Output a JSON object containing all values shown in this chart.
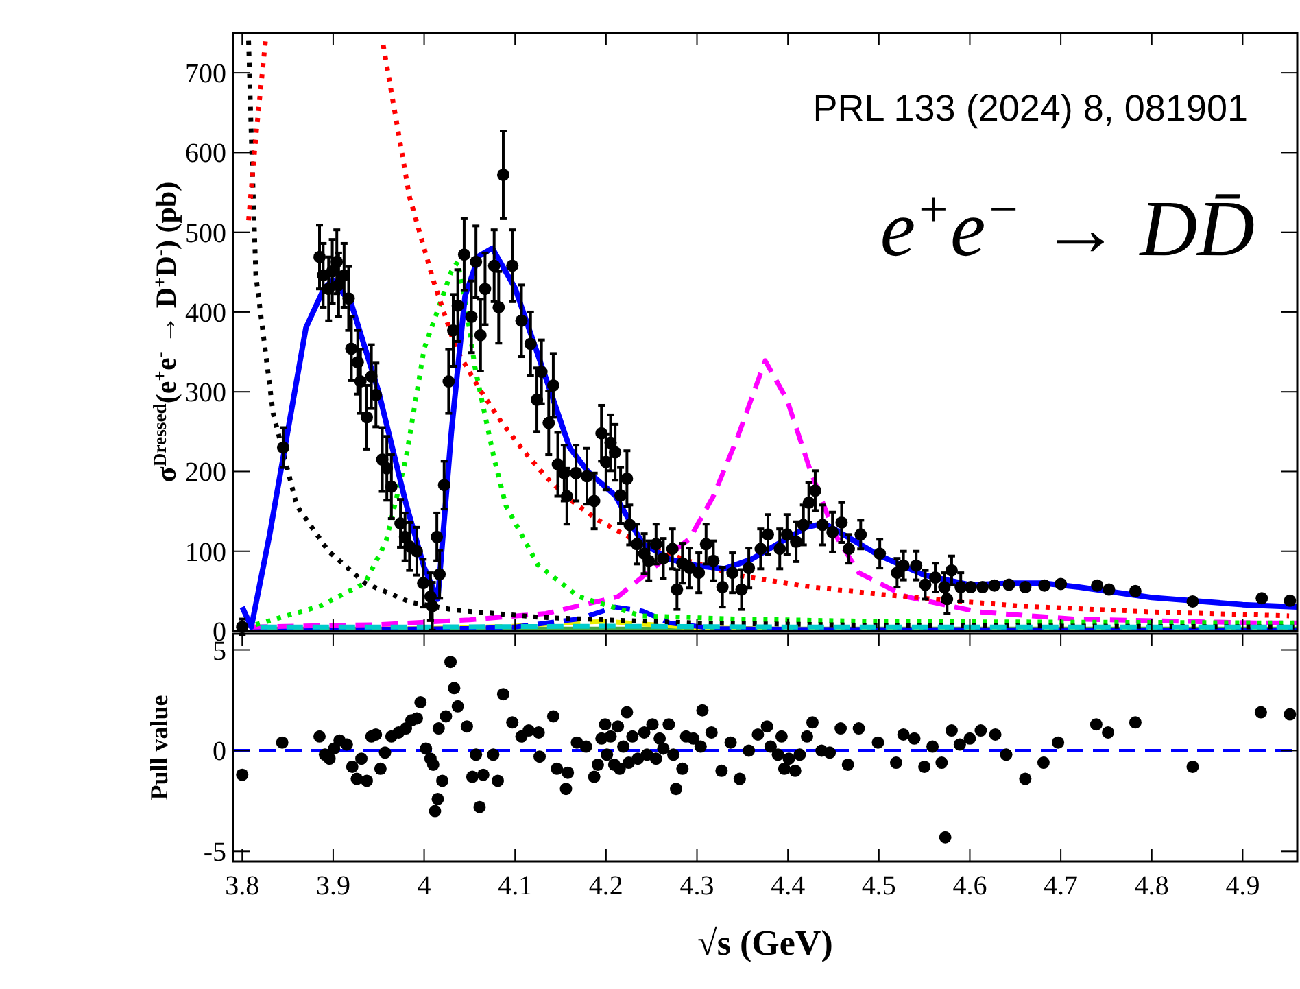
{
  "chart_data": [
    {
      "type": "scatter",
      "ylabel": "σ$^{Dressed}$(e$^{+}$e$^{-}$ → D$^{+}$D$^{-}$) (pb)",
      "annotations": [
        "PRL 133 (2024) 8, 081901",
        "e$^{+}$e$^{−}$ → DD̄"
      ],
      "xlim": [
        3.79,
        4.96
      ],
      "ylim": [
        0,
        750
      ],
      "xticks": [
        3.8,
        3.9,
        4,
        4.1,
        4.2,
        4.3,
        4.4,
        4.5,
        4.6,
        4.7,
        4.8,
        4.9
      ],
      "yticks": [
        0,
        100,
        200,
        300,
        400,
        500,
        600,
        700
      ],
      "tick_labels": "y",
      "marker": "circle",
      "series": [
        {
          "type": "line",
          "color": "#44aa44",
          "line_style": "solid",
          "marker": "none",
          "x": [
            3.81,
            4.0,
            4.2,
            4.4,
            4.6,
            4.8,
            4.96
          ],
          "values": [
            2,
            2,
            2,
            2,
            2,
            2,
            2
          ]
        },
        {
          "type": "line",
          "color": "#eeee00",
          "line_style": "dashed",
          "marker": "none",
          "x": [
            3.81,
            4.0,
            4.1,
            4.15,
            4.2,
            4.25,
            4.3,
            4.4,
            4.96
          ],
          "values": [
            1,
            3,
            6,
            10,
            12,
            8,
            4,
            2,
            1
          ]
        },
        {
          "type": "line",
          "color": "#0000ff",
          "line_style": "dashed",
          "marker": "none",
          "x": [
            3.81,
            4.05,
            4.1,
            4.17,
            4.21,
            4.24,
            4.27,
            4.32,
            4.4,
            4.96
          ],
          "values": [
            1,
            3,
            5,
            15,
            30,
            25,
            10,
            3,
            2,
            1
          ]
        },
        {
          "type": "line",
          "color": "#ff00ff",
          "line_style": "dashed",
          "marker": "none",
          "x": [
            3.81,
            3.95,
            4.05,
            4.134,
            4.213,
            4.292,
            4.318,
            4.344,
            4.375,
            4.399,
            4.425,
            4.452,
            4.478,
            4.53,
            4.609,
            4.714,
            4.92,
            4.96
          ],
          "values": [
            5,
            8,
            14,
            22,
            43,
            116,
            169,
            241,
            339,
            290,
            200,
            121,
            73,
            43,
            24,
            15,
            10,
            10
          ]
        },
        {
          "type": "line",
          "color": "#00ee00",
          "line_style": "dotted",
          "marker": "none",
          "x": [
            3.815,
            3.885,
            3.935,
            3.958,
            3.98,
            4.0,
            4.03,
            4.037,
            4.047,
            4.056,
            4.077,
            4.09,
            4.125,
            4.17,
            4.239,
            4.344,
            4.5,
            4.96
          ],
          "values": [
            8,
            31,
            60,
            112,
            216,
            354,
            451,
            463,
            400,
            330,
            216,
            157,
            83,
            43,
            19,
            15,
            12,
            10
          ]
        },
        {
          "type": "line",
          "color": "#000000",
          "line_style": "dotted",
          "marker": "none",
          "x": [
            3.807,
            3.81,
            3.815,
            3.834,
            3.86,
            3.895,
            3.935,
            3.985,
            4.035,
            4.13,
            4.2,
            4.3,
            4.5,
            4.96
          ],
          "values": [
            740,
            620,
            446,
            273,
            157,
            100,
            60,
            36,
            26,
            17,
            14,
            10,
            7,
            5
          ]
        },
        {
          "type": "line",
          "color": "#ff0000",
          "line_style": "dotted",
          "marker": "none",
          "x": [
            3.807,
            3.815,
            3.826,
            3.83,
            3.95,
            3.955,
            3.984,
            4.01,
            4.035,
            4.06,
            4.085,
            4.11,
            4.135,
            4.16,
            4.19,
            4.239,
            4.29,
            4.344,
            4.42,
            4.501,
            4.58,
            4.659,
            4.8,
            4.951
          ],
          "values": [
            515,
            620,
            745,
            null,
            null,
            735,
            544,
            440,
            354,
            305,
            262,
            225,
            192,
            165,
            140,
            109,
            88,
            70,
            56,
            46,
            38,
            31,
            24,
            19
          ]
        },
        {
          "type": "line",
          "color": "#0000ff",
          "line_style": "solid",
          "marker": "none",
          "x": [
            3.8,
            3.81,
            3.83,
            3.85,
            3.87,
            3.89,
            3.9,
            3.92,
            3.95,
            3.98,
            4.0,
            4.015,
            4.03,
            4.045,
            4.06,
            4.075,
            4.1,
            4.13,
            4.16,
            4.18,
            4.21,
            4.24,
            4.27,
            4.3,
            4.33,
            4.36,
            4.39,
            4.42,
            4.44,
            4.47,
            4.5,
            4.55,
            4.6,
            4.65,
            4.68,
            4.72,
            4.8,
            4.9,
            4.96
          ],
          "values": [
            30,
            5,
            120,
            250,
            380,
            430,
            440,
            410,
            300,
            160,
            80,
            40,
            250,
            420,
            470,
            480,
            430,
            330,
            230,
            200,
            170,
            110,
            90,
            82,
            78,
            90,
            110,
            130,
            135,
            115,
            95,
            70,
            58,
            60,
            60,
            55,
            42,
            33,
            30
          ]
        },
        {
          "type": "line",
          "color": "#00cccc",
          "line_style": "dashed",
          "marker": "none",
          "x": [
            3.82,
            4.0,
            4.2,
            4.4,
            4.6,
            4.8,
            4.96
          ],
          "values": [
            5,
            5,
            6,
            5,
            5,
            5,
            5
          ]
        },
        {
          "color": "#000000",
          "x": [
            3.8,
            3.845,
            3.885,
            3.889,
            3.895,
            3.899,
            3.904,
            3.906,
            3.912,
            3.917,
            3.92,
            3.927,
            3.93,
            3.937,
            3.942,
            3.947,
            3.954,
            3.959,
            3.964,
            3.974,
            3.979,
            3.984,
            3.992,
            3.999,
            4.007,
            4.009,
            4.014,
            4.017,
            4.022,
            4.027,
            4.032,
            4.037,
            4.044,
            4.052,
            4.057,
            4.062,
            4.067,
            4.077,
            4.082,
            4.087,
            4.097,
            4.107,
            4.117,
            4.124,
            4.129,
            4.137,
            4.142,
            4.147,
            4.154,
            4.157,
            4.167,
            4.179,
            4.187,
            4.195,
            4.2,
            4.205,
            4.21,
            4.216,
            4.223,
            4.226,
            4.234,
            4.242,
            4.247,
            4.255,
            4.263,
            4.273,
            4.278,
            4.284,
            4.292,
            4.302,
            4.31,
            4.318,
            4.328,
            4.339,
            4.349,
            4.357,
            4.37,
            4.378,
            4.391,
            4.399,
            4.409,
            4.417,
            4.423,
            4.43,
            4.438,
            4.449,
            4.459,
            4.467,
            4.48,
            4.501,
            4.52,
            4.527,
            4.541,
            4.551,
            4.562,
            4.572,
            4.575,
            4.58,
            4.59,
            4.601,
            4.614,
            4.627,
            4.643,
            4.661,
            4.682,
            4.7,
            4.74,
            4.753,
            4.782,
            4.845,
            4.921,
            4.952
          ],
          "values": [
            5,
            230,
            469,
            446,
            429,
            451,
            463,
            434,
            446,
            417,
            354,
            337,
            313,
            268,
            319,
            296,
            215,
            204,
            181,
            135,
            118,
            106,
            100,
            60,
            43,
            31,
            118,
            71,
            183,
            313,
            377,
            408,
            472,
            394,
            463,
            371,
            429,
            458,
            406,
            572,
            458,
            389,
            360,
            290,
            325,
            261,
            308,
            209,
            198,
            169,
            198,
            194,
            163,
            248,
            212,
            236,
            224,
            170,
            191,
            133,
            109,
            97,
            88,
            109,
            91,
            103,
            52,
            85,
            79,
            73,
            109,
            88,
            55,
            73,
            52,
            79,
            103,
            121,
            103,
            121,
            112,
            133,
            161,
            176,
            133,
            124,
            136,
            103,
            121,
            97,
            73,
            82,
            82,
            58,
            67,
            55,
            40,
            76,
            55,
            55,
            55,
            57,
            58,
            55,
            57,
            59,
            57,
            52,
            50,
            37,
            41,
            38
          ],
          "errors": [
            10,
            25,
            40,
            40,
            40,
            40,
            40,
            40,
            40,
            40,
            40,
            40,
            40,
            40,
            40,
            40,
            40,
            40,
            40,
            30,
            30,
            30,
            30,
            30,
            30,
            30,
            30,
            30,
            30,
            40,
            45,
            45,
            45,
            45,
            45,
            45,
            45,
            45,
            45,
            55,
            45,
            45,
            40,
            40,
            40,
            40,
            40,
            40,
            35,
            35,
            35,
            35,
            35,
            35,
            35,
            35,
            35,
            35,
            35,
            25,
            25,
            25,
            25,
            25,
            25,
            25,
            25,
            25,
            25,
            25,
            25,
            25,
            25,
            25,
            25,
            25,
            25,
            25,
            25,
            25,
            25,
            25,
            25,
            25,
            25,
            25,
            25,
            18,
            18,
            18,
            18,
            18,
            18,
            18,
            18,
            18,
            18,
            18,
            18,
            null,
            null,
            null,
            null,
            null,
            null,
            null,
            null,
            null,
            null,
            null,
            null,
            null
          ]
        }
      ]
    },
    {
      "type": "scatter",
      "xlabel": "√s  (GeV)",
      "ylabel": "Pull value",
      "xlim": [
        3.79,
        4.96
      ],
      "ylim": [
        -5.5,
        5.8
      ],
      "xticks": [
        3.8,
        3.9,
        4,
        4.1,
        4.2,
        4.3,
        4.4,
        4.5,
        4.6,
        4.7,
        4.8,
        4.9
      ],
      "yticks": [
        -5,
        0,
        5
      ],
      "marker": "circle",
      "ref_lines": [
        {
          "axis": "y",
          "value": 0,
          "color": "#0000ff",
          "line_style": "dashed"
        }
      ],
      "series": [
        {
          "color": "#000000",
          "x": [
            3.8,
            3.844,
            3.885,
            3.891,
            3.896,
            3.901,
            3.907,
            3.915,
            3.921,
            3.926,
            3.931,
            3.937,
            3.942,
            3.947,
            3.952,
            3.957,
            3.964,
            3.972,
            3.98,
            3.986,
            3.992,
            3.996,
            4.002,
            4.007,
            4.01,
            4.012,
            4.015,
            4.016,
            4.02,
            4.024,
            4.029,
            4.033,
            4.037,
            4.047,
            4.053,
            4.057,
            4.061,
            4.065,
            4.076,
            4.081,
            4.087,
            4.097,
            4.107,
            4.115,
            4.126,
            4.127,
            4.142,
            4.146,
            4.156,
            4.158,
            4.168,
            4.178,
            4.187,
            4.191,
            4.195,
            4.199,
            4.201,
            4.205,
            4.209,
            4.213,
            4.215,
            4.219,
            4.223,
            4.225,
            4.229,
            4.235,
            4.242,
            4.245,
            4.251,
            4.255,
            4.259,
            4.263,
            4.269,
            4.274,
            4.277,
            4.284,
            4.288,
            4.296,
            4.304,
            4.306,
            4.316,
            4.327,
            4.337,
            4.347,
            4.357,
            4.367,
            4.377,
            4.381,
            4.389,
            4.393,
            4.396,
            4.401,
            4.408,
            4.413,
            4.421,
            4.427,
            4.437,
            4.446,
            4.458,
            4.466,
            4.478,
            4.499,
            4.519,
            4.527,
            4.539,
            4.55,
            4.559,
            4.569,
            4.573,
            4.58,
            4.589,
            4.6,
            4.612,
            4.628,
            4.64,
            4.661,
            4.681,
            4.697,
            4.739,
            4.752,
            4.782,
            4.845,
            4.92,
            4.952
          ],
          "values": [
            -1.2,
            0.4,
            0.7,
            -0.2,
            -0.4,
            0.1,
            0.5,
            0.3,
            -0.8,
            -1.4,
            -0.4,
            -1.5,
            0.7,
            0.8,
            -0.9,
            -0.1,
            0.7,
            0.9,
            1.1,
            1.5,
            1.6,
            2.4,
            0.1,
            -0.4,
            -0.7,
            -3.0,
            -2.4,
            1.1,
            -1.5,
            1.7,
            4.4,
            3.1,
            2.2,
            1.2,
            -1.3,
            -0.2,
            -2.8,
            -1.2,
            -0.2,
            -1.5,
            2.8,
            1.4,
            0.7,
            1.0,
            0.9,
            -0.3,
            1.7,
            -0.9,
            -1.9,
            -1.1,
            0.4,
            0.2,
            -1.3,
            -0.7,
            0.6,
            1.3,
            -0.2,
            0.7,
            -0.7,
            1.2,
            -0.9,
            0.2,
            1.9,
            -0.6,
            0.7,
            -0.4,
            0.9,
            -0.2,
            1.3,
            -0.4,
            0.6,
            0.1,
            1.3,
            -0.2,
            -1.9,
            -0.9,
            0.7,
            0.6,
            0.2,
            2.0,
            0.9,
            -1.0,
            0.4,
            -1.4,
            0.0,
            0.8,
            1.2,
            0.2,
            -0.2,
            0.7,
            -0.9,
            -0.4,
            -1.0,
            -0.2,
            0.7,
            1.4,
            0.0,
            -0.1,
            1.1,
            -0.7,
            1.1,
            0.4,
            -0.6,
            0.8,
            0.6,
            -0.8,
            0.2,
            -0.6,
            -4.3,
            1.0,
            0.3,
            0.6,
            1.0,
            0.8,
            -0.2,
            -1.4,
            -0.6,
            0.4,
            1.3,
            0.9,
            1.4,
            -0.8,
            1.9,
            1.8
          ]
        }
      ]
    }
  ]
}
